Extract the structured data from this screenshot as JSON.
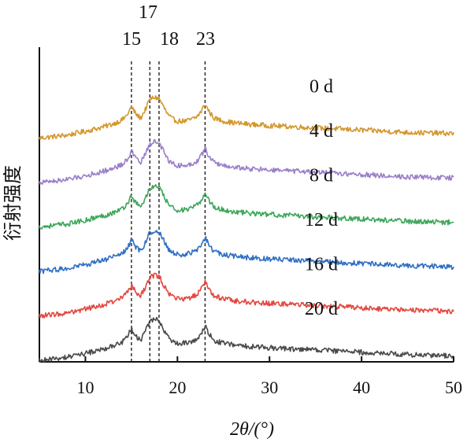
{
  "chart_data": {
    "type": "line",
    "xlabel": "2θ/(°)",
    "ylabel": "衍射强度",
    "xlim": [
      5,
      50
    ],
    "x_ticks": [
      10,
      20,
      30,
      40,
      50
    ],
    "y_ticks_shown": false,
    "grid": false,
    "legend": "labels at right of each curve",
    "peak_markers": [
      {
        "x": 15,
        "label": "15"
      },
      {
        "x": 17,
        "label": "17"
      },
      {
        "x": 18,
        "label": "18"
      },
      {
        "x": 23,
        "label": "23"
      }
    ],
    "series": [
      {
        "name": "0 d",
        "color": "#d4962b",
        "offset": 5
      },
      {
        "name": "4 d",
        "color": "#9a7fc9",
        "offset": 4
      },
      {
        "name": "8 d",
        "color": "#3ca65a",
        "offset": 3
      },
      {
        "name": "12 d",
        "color": "#2f6fc4",
        "offset": 2
      },
      {
        "name": "16 d",
        "color": "#e2473f",
        "offset": 1
      },
      {
        "name": "20 d",
        "color": "#4a4a4a",
        "offset": 0
      }
    ],
    "profile": {
      "x": [
        5,
        8,
        10,
        12,
        13,
        14,
        14.5,
        15,
        15.5,
        16,
        16.5,
        17,
        17.5,
        18,
        18.5,
        19,
        19.5,
        20,
        21,
        22,
        22.5,
        23,
        23.5,
        24,
        25,
        26,
        28,
        30,
        35,
        40,
        45,
        50
      ],
      "y": [
        0,
        0.05,
        0.12,
        0.2,
        0.25,
        0.32,
        0.4,
        0.55,
        0.42,
        0.35,
        0.5,
        0.68,
        0.72,
        0.7,
        0.55,
        0.4,
        0.33,
        0.3,
        0.3,
        0.36,
        0.45,
        0.6,
        0.45,
        0.35,
        0.3,
        0.27,
        0.24,
        0.22,
        0.18,
        0.14,
        0.1,
        0.08
      ]
    }
  }
}
